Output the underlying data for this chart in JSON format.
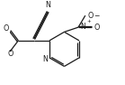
{
  "bg_color": "#ffffff",
  "line_color": "#1a1a1a",
  "lw": 0.9,
  "figsize": [
    1.39,
    0.94
  ],
  "dpi": 100,
  "xlim": [
    -1.5,
    5.5
  ],
  "ylim": [
    -2.8,
    2.2
  ]
}
